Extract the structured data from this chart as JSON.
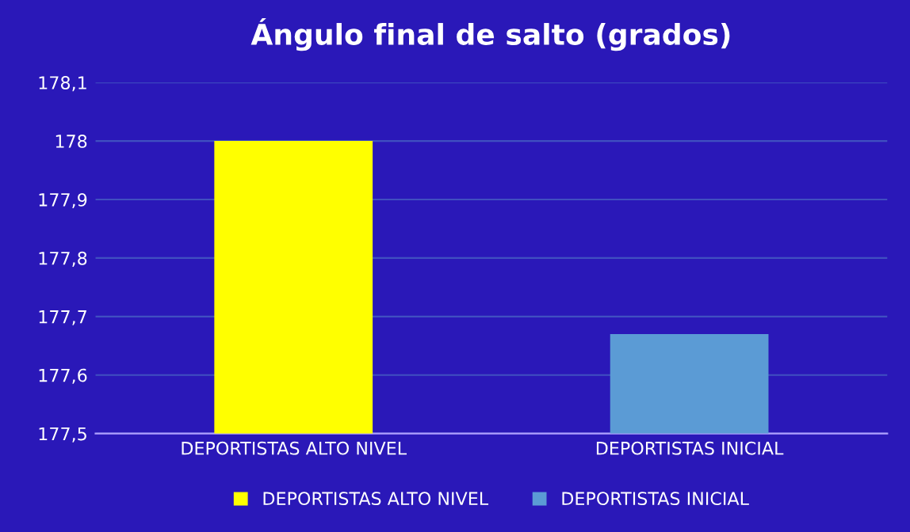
{
  "chart_data": {
    "type": "bar",
    "title": "Ángulo final de salto (grados)",
    "categories": [
      "DEPORTISTAS ALTO NIVEL",
      "DEPORTISTAS INICIAL"
    ],
    "series": [
      {
        "name": "DEPORTISTAS ALTO NIVEL",
        "color": "#ffff00",
        "values": [
          178,
          null
        ]
      },
      {
        "name": "DEPORTISTAS INICIAL",
        "color": "#5b9bd5",
        "values": [
          null,
          177.67
        ]
      }
    ],
    "ylim": [
      177.5,
      178.1
    ],
    "yticks": [
      {
        "value": 177.5,
        "label": "177,5"
      },
      {
        "value": 177.6,
        "label": "177,6"
      },
      {
        "value": 177.7,
        "label": "177,7"
      },
      {
        "value": 177.8,
        "label": "177,8"
      },
      {
        "value": 177.9,
        "label": "177,9"
      },
      178,
      {
        "value": 178.1,
        "label": "178,1"
      }
    ],
    "grid": "y",
    "legend": "bottom"
  }
}
